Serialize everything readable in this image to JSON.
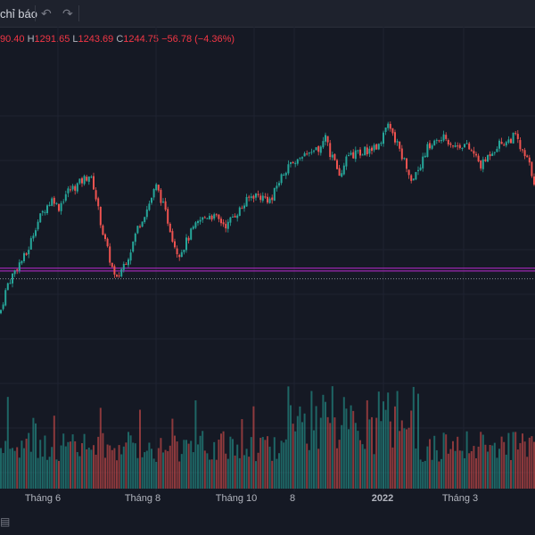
{
  "toolbar": {
    "indicators_label": "chỉ báo",
    "undo_icon": "undo-icon",
    "redo_icon": "redo-icon"
  },
  "legend": {
    "open_value": "90.40",
    "high_key": "H",
    "high_value": "1291.65",
    "low_key": "L",
    "low_value": "1243.69",
    "close_key": "C",
    "close_value": "1244.75",
    "change": "−56.78 (−4.36%)"
  },
  "colors": {
    "background": "#151924",
    "up": "#26a69a",
    "down": "#ef5350",
    "highlight_line": "#9c27b0"
  },
  "chart_data": {
    "type": "candlestick",
    "x_tick_labels": [
      "Tháng 6",
      "Tháng 8",
      "Tháng 10",
      "8",
      "2022",
      "Tháng 3"
    ],
    "x_tick_bold": [
      false,
      false,
      false,
      false,
      true,
      false
    ],
    "anchor_closes": [
      [
        0,
        905
      ],
      [
        8,
        955
      ],
      [
        20,
        990
      ],
      [
        30,
        1010
      ],
      [
        40,
        1060
      ],
      [
        50,
        1090
      ],
      [
        60,
        1110
      ],
      [
        65,
        1090
      ],
      [
        75,
        1120
      ],
      [
        85,
        1130
      ],
      [
        100,
        1150
      ],
      [
        105,
        1130
      ],
      [
        115,
        1050
      ],
      [
        120,
        1020
      ],
      [
        130,
        960
      ],
      [
        135,
        980
      ],
      [
        145,
        1010
      ],
      [
        155,
        1060
      ],
      [
        165,
        1090
      ],
      [
        175,
        1130
      ],
      [
        180,
        1110
      ],
      [
        190,
        1060
      ],
      [
        195,
        1030
      ],
      [
        200,
        1010
      ],
      [
        205,
        1020
      ],
      [
        215,
        1050
      ],
      [
        225,
        1070
      ],
      [
        235,
        1080
      ],
      [
        245,
        1070
      ],
      [
        255,
        1060
      ],
      [
        260,
        1075
      ],
      [
        270,
        1090
      ],
      [
        280,
        1110
      ],
      [
        285,
        1115
      ],
      [
        295,
        1110
      ],
      [
        305,
        1105
      ],
      [
        310,
        1130
      ],
      [
        320,
        1160
      ],
      [
        330,
        1175
      ],
      [
        340,
        1180
      ],
      [
        350,
        1185
      ],
      [
        360,
        1200
      ],
      [
        365,
        1215
      ],
      [
        370,
        1190
      ],
      [
        375,
        1175
      ],
      [
        380,
        1140
      ],
      [
        385,
        1170
      ],
      [
        395,
        1185
      ],
      [
        405,
        1190
      ],
      [
        415,
        1195
      ],
      [
        425,
        1205
      ],
      [
        430,
        1225
      ],
      [
        435,
        1235
      ],
      [
        445,
        1205
      ],
      [
        455,
        1170
      ],
      [
        462,
        1140
      ],
      [
        470,
        1165
      ],
      [
        480,
        1200
      ],
      [
        490,
        1210
      ],
      [
        500,
        1215
      ],
      [
        510,
        1200
      ],
      [
        520,
        1205
      ],
      [
        530,
        1190
      ],
      [
        540,
        1165
      ],
      [
        550,
        1190
      ],
      [
        560,
        1205
      ],
      [
        570,
        1210
      ],
      [
        578,
        1220
      ],
      [
        585,
        1190
      ],
      [
        592,
        1175
      ],
      [
        600,
        1135
      ]
    ],
    "price_range": [
      860,
      1270
    ],
    "level_lines": [
      985,
      980
    ],
    "dotted_level": 966
  }
}
